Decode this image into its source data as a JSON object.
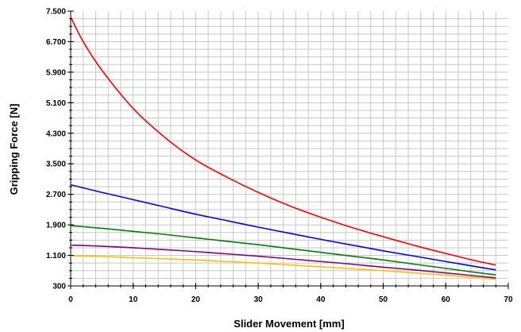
{
  "chart_data": {
    "type": "line",
    "title": "",
    "xlabel": "Slider Movement [mm]",
    "ylabel": "Gripping Force [N]",
    "xlim": [
      0,
      70
    ],
    "ylim": [
      300,
      7500
    ],
    "x_ticks": [
      0,
      10,
      20,
      30,
      40,
      50,
      60,
      70
    ],
    "x_tick_labels": [
      "0",
      "10",
      "20",
      "30",
      "40",
      "50",
      "60",
      "70"
    ],
    "y_ticks": [
      300,
      1100,
      1900,
      2700,
      3500,
      4300,
      5100,
      5900,
      6700,
      7500
    ],
    "y_tick_labels": [
      "300",
      "1.100",
      "1.900",
      "2.700",
      "3.500",
      "4.300",
      "5.100",
      "5.900",
      "6.700",
      "7.500"
    ],
    "x_minor_step": 2,
    "y_minor_step": 200,
    "grid": true,
    "legend": "none",
    "series": [
      {
        "color": "#ff0000",
        "x": [
          0,
          2,
          5,
          10,
          15,
          20,
          25,
          30,
          35,
          40,
          45,
          50,
          55,
          60,
          65,
          68
        ],
        "values": [
          7350,
          6700,
          5950,
          4950,
          4200,
          3600,
          3150,
          2750,
          2400,
          2100,
          1830,
          1590,
          1360,
          1150,
          950,
          850
        ]
      },
      {
        "color": "#0000ff",
        "x": [
          0,
          5,
          10,
          15,
          20,
          25,
          30,
          35,
          40,
          45,
          50,
          55,
          60,
          65,
          68
        ],
        "values": [
          2950,
          2750,
          2560,
          2370,
          2180,
          2010,
          1840,
          1680,
          1520,
          1370,
          1220,
          1080,
          940,
          800,
          720
        ]
      },
      {
        "color": "#008000",
        "x": [
          0,
          5,
          10,
          15,
          20,
          25,
          30,
          35,
          40,
          45,
          50,
          55,
          60,
          65,
          68
        ],
        "values": [
          1880,
          1810,
          1730,
          1650,
          1560,
          1470,
          1380,
          1280,
          1180,
          1080,
          980,
          870,
          760,
          650,
          590
        ]
      },
      {
        "color": "#800080",
        "x": [
          0,
          5,
          10,
          15,
          20,
          25,
          30,
          35,
          40,
          45,
          50,
          55,
          60,
          65,
          68
        ],
        "values": [
          1370,
          1340,
          1300,
          1250,
          1200,
          1140,
          1080,
          1010,
          940,
          870,
          790,
          720,
          640,
          560,
          510
        ]
      },
      {
        "color": "#ffc000",
        "x": [
          0,
          5,
          10,
          15,
          20,
          25,
          30,
          35,
          40,
          45,
          50,
          55,
          60,
          65,
          68
        ],
        "values": [
          1090,
          1070,
          1040,
          1010,
          980,
          940,
          900,
          850,
          800,
          750,
          700,
          640,
          580,
          520,
          470
        ]
      }
    ]
  }
}
